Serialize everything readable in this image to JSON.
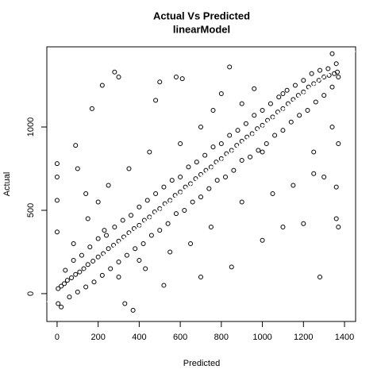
{
  "chart_data": {
    "type": "scatter",
    "title": "Actual Vs Predicted",
    "subtitle": "linearModel",
    "x_label": "Predicted",
    "y_label": "Actual",
    "xlim": [
      -50,
      1454
    ],
    "ylim": [
      -167,
      1481
    ],
    "xticks": [
      0,
      200,
      400,
      600,
      800,
      1000,
      1200,
      1400
    ],
    "yticks": [
      0,
      500,
      1000
    ],
    "color": "#000000",
    "abline": {
      "intercept": 0,
      "slope": 1,
      "color": "#ffffff"
    },
    "x": [
      5,
      20,
      35,
      50,
      70,
      90,
      110,
      130,
      150,
      175,
      200,
      225,
      250,
      275,
      300,
      325,
      350,
      375,
      400,
      425,
      450,
      475,
      500,
      525,
      550,
      575,
      600,
      625,
      650,
      675,
      700,
      725,
      750,
      775,
      800,
      825,
      850,
      875,
      900,
      925,
      950,
      975,
      1000,
      1025,
      1050,
      1075,
      1100,
      1125,
      1150,
      1175,
      1200,
      1225,
      1250,
      1275,
      1300,
      1325,
      1350,
      1365,
      40,
      80,
      120,
      160,
      200,
      240,
      280,
      320,
      360,
      400,
      440,
      480,
      520,
      560,
      600,
      640,
      680,
      720,
      760,
      800,
      840,
      880,
      920,
      960,
      1000,
      1040,
      1080,
      1120,
      1160,
      1200,
      1240,
      1280,
      1320,
      1360,
      60,
      100,
      140,
      180,
      220,
      260,
      300,
      340,
      380,
      420,
      460,
      500,
      540,
      580,
      620,
      660,
      700,
      740,
      780,
      820,
      860,
      900,
      940,
      980,
      1020,
      1060,
      1100,
      1140,
      1180,
      1220,
      1260,
      1300,
      1340,
      1370,
      0,
      0,
      0,
      0,
      5,
      20,
      90,
      100,
      170,
      220,
      230,
      280,
      300,
      330,
      370,
      430,
      480,
      500,
      520,
      580,
      610,
      700,
      760,
      840,
      850,
      900,
      960,
      1000,
      1000,
      1100,
      1200,
      1250,
      1280,
      1340,
      1360,
      1370,
      1360,
      140,
      250,
      350,
      450,
      600,
      650,
      750,
      900,
      1050,
      1150,
      1250,
      1300,
      1340,
      1370,
      80,
      150,
      300,
      400,
      550,
      700,
      800,
      1100,
      200
    ],
    "values": [
      30,
      45,
      60,
      80,
      95,
      115,
      130,
      150,
      175,
      195,
      220,
      240,
      270,
      290,
      315,
      340,
      365,
      390,
      410,
      440,
      460,
      490,
      510,
      540,
      560,
      590,
      610,
      640,
      660,
      690,
      715,
      740,
      760,
      790,
      810,
      840,
      860,
      890,
      915,
      940,
      960,
      990,
      1010,
      1040,
      1060,
      1090,
      1110,
      1140,
      1165,
      1190,
      1210,
      1240,
      1260,
      1280,
      1300,
      1310,
      1320,
      1330,
      140,
      200,
      230,
      280,
      330,
      350,
      400,
      440,
      470,
      520,
      560,
      600,
      640,
      680,
      700,
      760,
      790,
      830,
      880,
      900,
      950,
      980,
      1020,
      1070,
      1100,
      1140,
      1180,
      1220,
      1250,
      1280,
      1320,
      1340,
      1350,
      1380,
      -20,
      10,
      40,
      70,
      110,
      150,
      190,
      230,
      270,
      300,
      350,
      380,
      420,
      480,
      500,
      550,
      580,
      630,
      680,
      700,
      740,
      800,
      820,
      860,
      900,
      950,
      980,
      1030,
      1070,
      1100,
      1150,
      1190,
      1240,
      1300,
      780,
      700,
      560,
      370,
      -60,
      -80,
      890,
      750,
      1110,
      1250,
      380,
      1330,
      1300,
      -60,
      -100,
      150,
      1160,
      1270,
      50,
      1300,
      1290,
      100,
      1100,
      1360,
      160,
      1140,
      1230,
      850,
      320,
      400,
      420,
      720,
      100,
      1440,
      640,
      400,
      450,
      600,
      650,
      750,
      850,
      900,
      300,
      400,
      550,
      600,
      650,
      850,
      700,
      1000,
      900,
      300,
      450,
      100,
      200,
      250,
      1000,
      1200,
      1200,
      550
    ]
  }
}
